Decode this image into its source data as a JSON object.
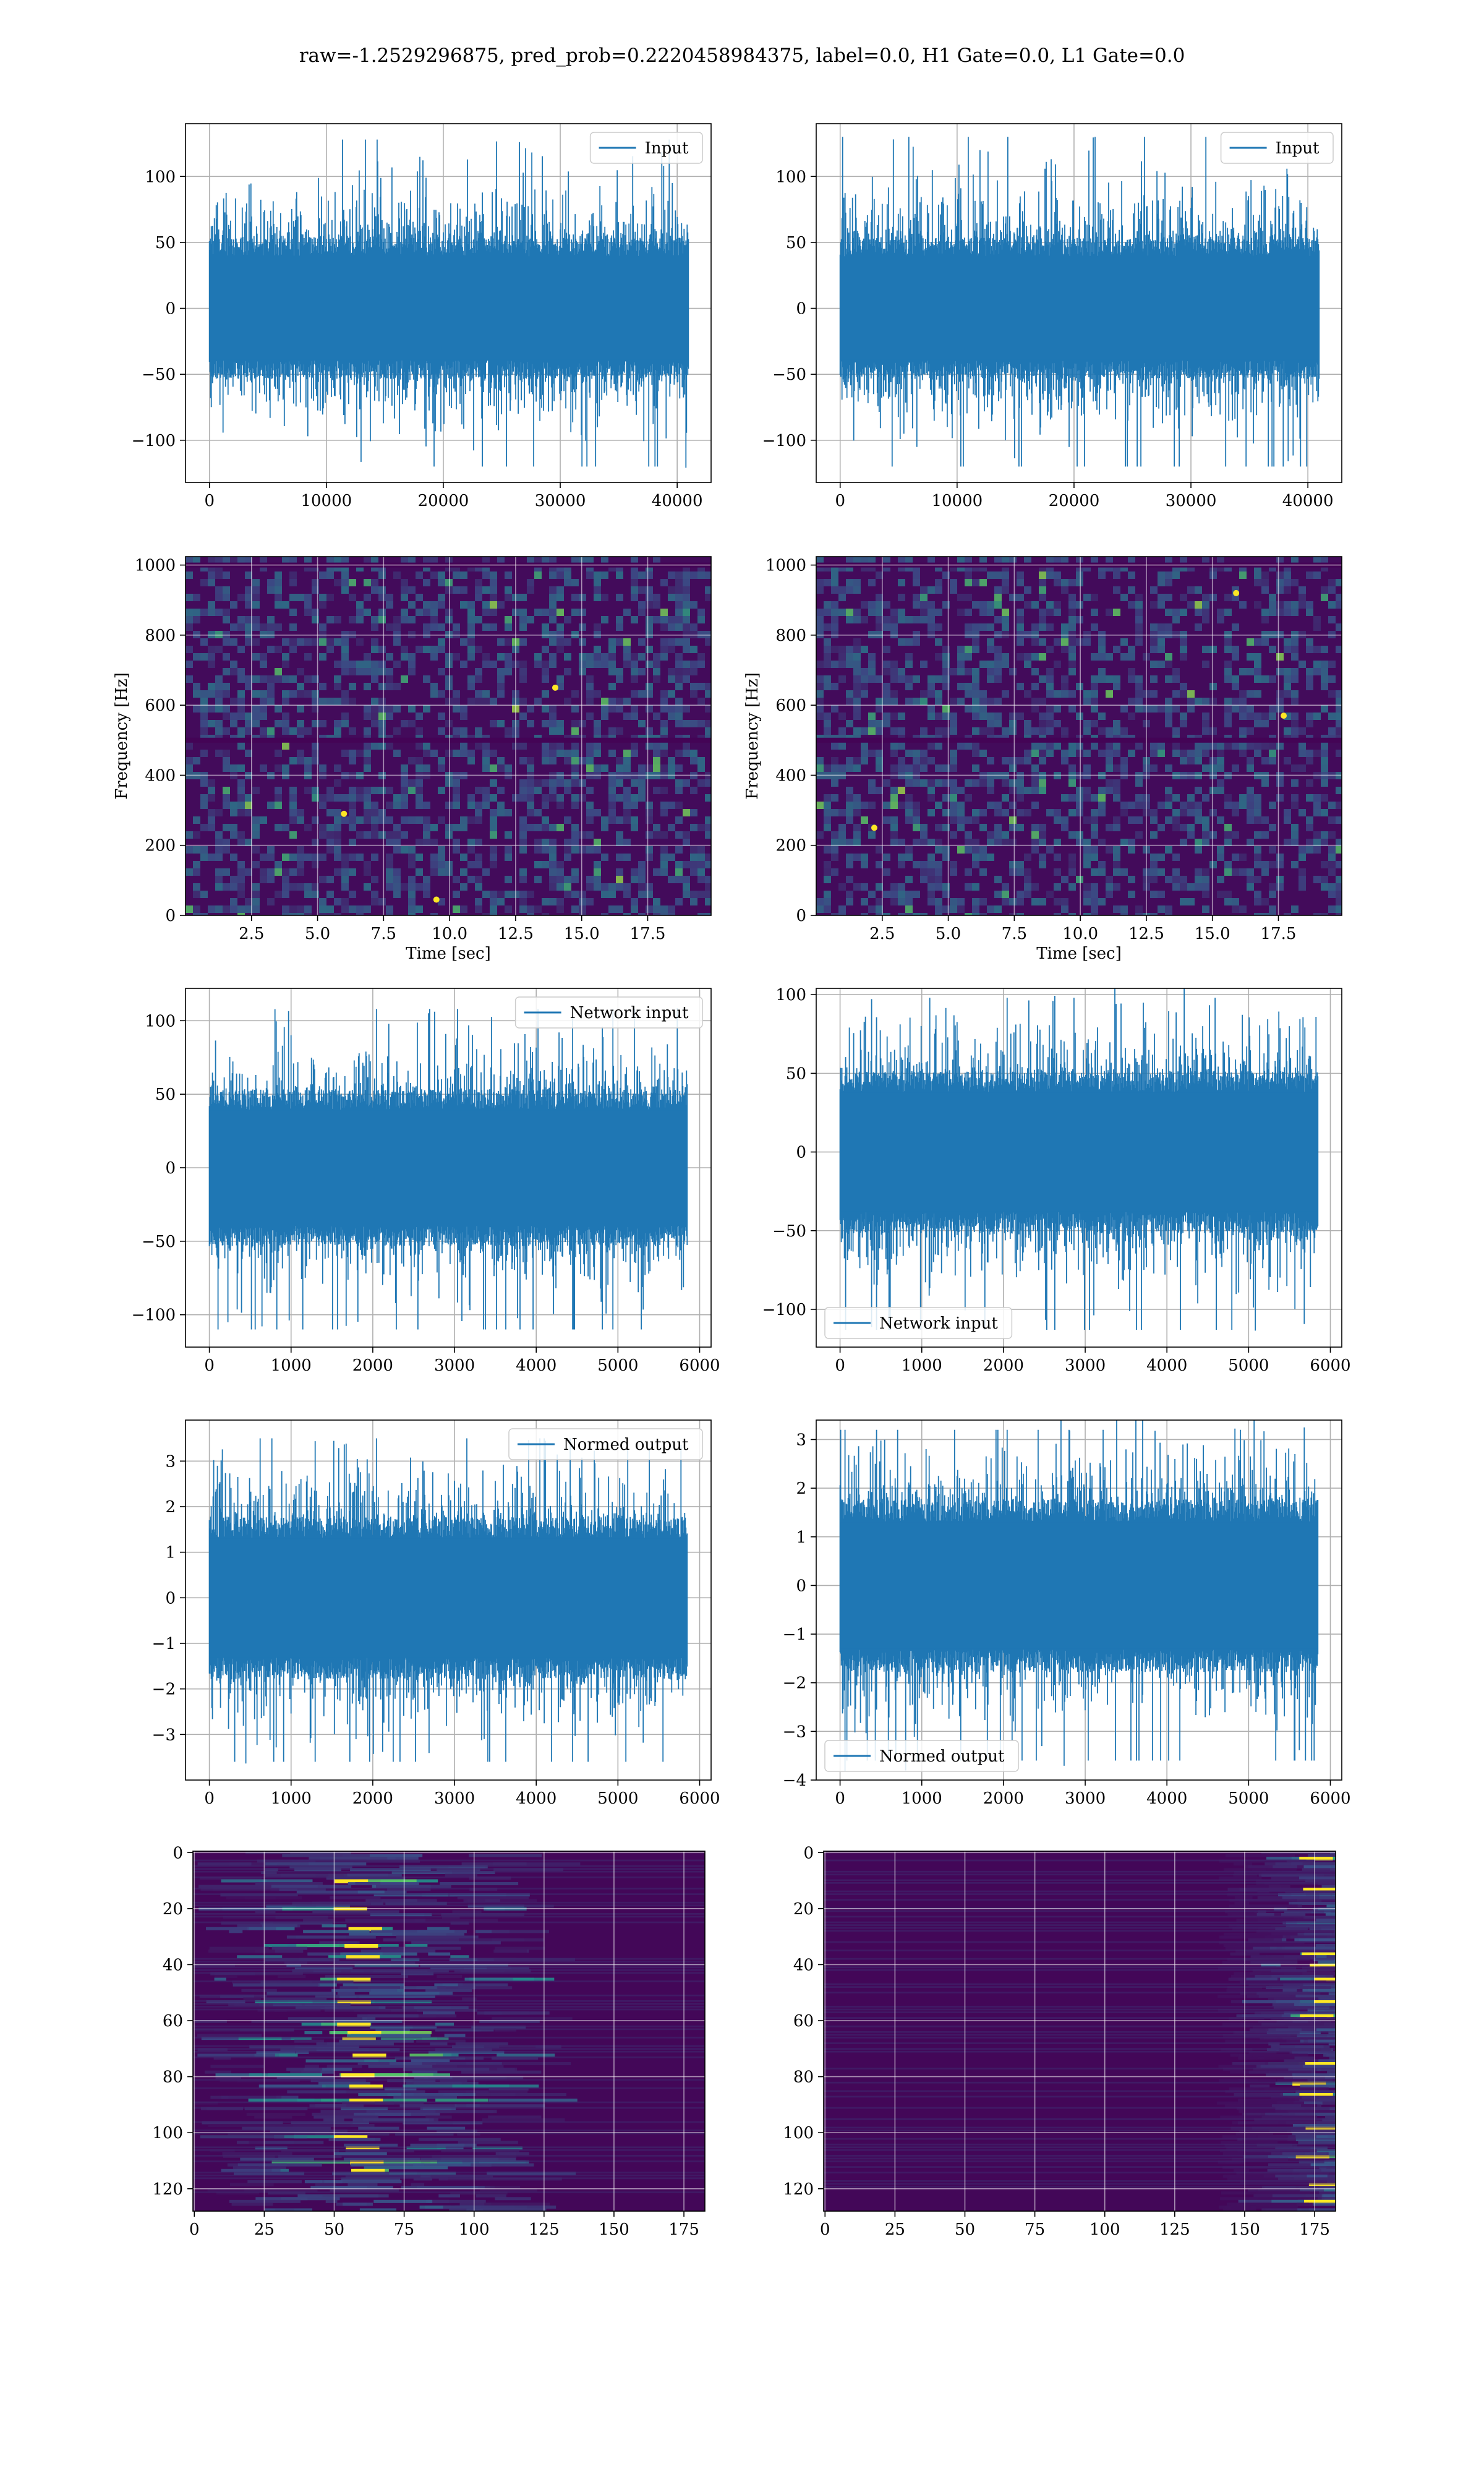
{
  "figure": {
    "suptitle": "raw=-1.2529296875, pred_prob=0.2220458984375, label=0.0, H1 Gate=0.0, L1 Gate=0.0"
  },
  "colors": {
    "line": "#1f77b4",
    "grid": "#b0b0b0",
    "frame": "#000000",
    "viridis_low": "#440154",
    "viridis_mid": "#21918c",
    "viridis_high": "#fde725"
  },
  "chart_data": [
    {
      "id": "ts-input-h1",
      "type": "line",
      "grid": true,
      "xlim": [
        -2048,
        42900
      ],
      "ylim": [
        -132,
        140
      ],
      "xticks": [
        0,
        10000,
        20000,
        30000,
        40000
      ],
      "xtick_labels": [
        "0",
        "10000",
        "20000",
        "30000",
        "40000"
      ],
      "yticks": [
        -100,
        -50,
        0,
        50,
        100
      ],
      "ytick_labels": [
        "−100",
        "−50",
        "0",
        "50",
        "100"
      ],
      "legend": "Input",
      "legend_loc": "upper right",
      "noise": {
        "n": 40960,
        "x0": 0,
        "x1": 40959,
        "std": 30,
        "peak": 128,
        "trough": -120
      }
    },
    {
      "id": "ts-input-l1",
      "type": "line",
      "grid": true,
      "xlim": [
        -2048,
        42900
      ],
      "ylim": [
        -132,
        140
      ],
      "xticks": [
        0,
        10000,
        20000,
        30000,
        40000
      ],
      "xtick_labels": [
        "0",
        "10000",
        "20000",
        "30000",
        "40000"
      ],
      "yticks": [
        -100,
        -50,
        0,
        50,
        100
      ],
      "ytick_labels": [
        "−100",
        "−50",
        "0",
        "50",
        "100"
      ],
      "legend": "Input",
      "legend_loc": "upper right",
      "noise": {
        "n": 40960,
        "x0": 0,
        "x1": 40959,
        "std": 30,
        "peak": 130,
        "trough": -120
      }
    },
    {
      "id": "spec-h1",
      "type": "heatmap",
      "grid": true,
      "xlim": [
        0,
        19.9
      ],
      "ylim": [
        0,
        1024
      ],
      "xticks": [
        2.5,
        5.0,
        7.5,
        10.0,
        12.5,
        15.0,
        17.5
      ],
      "xtick_labels": [
        "2.5",
        "5.0",
        "7.5",
        "10.0",
        "12.5",
        "15.0",
        "17.5"
      ],
      "yticks": [
        0,
        200,
        400,
        600,
        800,
        1000
      ],
      "ytick_labels": [
        "0",
        "200",
        "400",
        "600",
        "800",
        "1000"
      ],
      "xlabel": "Time [sec]",
      "ylabel": "Frequency [Hz]",
      "lines_y": [
        500,
        1000
      ],
      "hot_spots": [
        [
          9.5,
          45
        ],
        [
          6.0,
          290
        ],
        [
          14.0,
          650
        ]
      ]
    },
    {
      "id": "spec-l1",
      "type": "heatmap",
      "grid": true,
      "xlim": [
        0,
        19.9
      ],
      "ylim": [
        0,
        1024
      ],
      "xticks": [
        2.5,
        5.0,
        7.5,
        10.0,
        12.5,
        15.0,
        17.5
      ],
      "xtick_labels": [
        "2.5",
        "5.0",
        "7.5",
        "10.0",
        "12.5",
        "15.0",
        "17.5"
      ],
      "yticks": [
        0,
        200,
        400,
        600,
        800,
        1000
      ],
      "ytick_labels": [
        "0",
        "200",
        "400",
        "600",
        "800",
        "1000"
      ],
      "xlabel": "Time [sec]",
      "ylabel": "Frequency [Hz]",
      "lines_y": [
        500,
        1000
      ],
      "hot_spots": [
        [
          15.9,
          920
        ],
        [
          17.7,
          570
        ],
        [
          2.2,
          250
        ]
      ]
    },
    {
      "id": "ts-network-h1",
      "type": "line",
      "grid": true,
      "xlim": [
        -292,
        6140
      ],
      "ylim": [
        -122,
        122
      ],
      "xticks": [
        0,
        1000,
        2000,
        3000,
        4000,
        5000,
        6000
      ],
      "xtick_labels": [
        "0",
        "1000",
        "2000",
        "3000",
        "4000",
        "5000",
        "6000"
      ],
      "yticks": [
        -100,
        -50,
        0,
        50,
        100
      ],
      "ytick_labels": [
        "−100",
        "−50",
        "0",
        "50",
        "100"
      ],
      "legend": "Network input",
      "legend_loc": "upper right",
      "noise": {
        "n": 5848,
        "x0": 0,
        "x1": 5847,
        "std": 30,
        "peak": 108,
        "trough": -110
      }
    },
    {
      "id": "ts-network-l1",
      "type": "line",
      "grid": true,
      "xlim": [
        -292,
        6140
      ],
      "ylim": [
        -124,
        104
      ],
      "xticks": [
        0,
        1000,
        2000,
        3000,
        4000,
        5000,
        6000
      ],
      "xtick_labels": [
        "0",
        "1000",
        "2000",
        "3000",
        "4000",
        "5000",
        "6000"
      ],
      "yticks": [
        -100,
        -50,
        0,
        50,
        100
      ],
      "ytick_labels": [
        "−100",
        "−50",
        "0",
        "50",
        "100"
      ],
      "legend": "Network input",
      "legend_loc": "lower left",
      "noise": {
        "n": 5848,
        "x0": 0,
        "x1": 5847,
        "std": 29,
        "peak": 98,
        "trough": -113
      }
    },
    {
      "id": "ts-normed-h1",
      "type": "line",
      "grid": true,
      "xlim": [
        -292,
        6140
      ],
      "ylim": [
        -4.0,
        3.9
      ],
      "xticks": [
        0,
        1000,
        2000,
        3000,
        4000,
        5000,
        6000
      ],
      "xtick_labels": [
        "0",
        "1000",
        "2000",
        "3000",
        "4000",
        "5000",
        "6000"
      ],
      "yticks": [
        -3,
        -2,
        -1,
        0,
        1,
        2,
        3
      ],
      "ytick_labels": [
        "−3",
        "−2",
        "−1",
        "0",
        "1",
        "2",
        "3"
      ],
      "legend": "Normed output",
      "legend_loc": "upper right",
      "noise": {
        "n": 5848,
        "x0": 0,
        "x1": 5847,
        "std": 1.0,
        "peak": 3.5,
        "trough": -3.6
      }
    },
    {
      "id": "ts-normed-l1",
      "type": "line",
      "grid": true,
      "xlim": [
        -292,
        6140
      ],
      "ylim": [
        -4.0,
        3.4
      ],
      "xticks": [
        0,
        1000,
        2000,
        3000,
        4000,
        5000,
        6000
      ],
      "xtick_labels": [
        "0",
        "1000",
        "2000",
        "3000",
        "4000",
        "5000",
        "6000"
      ],
      "yticks": [
        -4,
        -3,
        -2,
        -1,
        0,
        1,
        2,
        3
      ],
      "ytick_labels": [
        "−4",
        "−3",
        "−2",
        "−1",
        "0",
        "1",
        "2",
        "3"
      ],
      "legend": "Normed output",
      "legend_loc": "lower left",
      "noise": {
        "n": 5848,
        "x0": 0,
        "x1": 5847,
        "std": 1.0,
        "peak": 3.2,
        "trough": -3.6
      }
    },
    {
      "id": "feat-h1",
      "type": "heatmap",
      "grid": true,
      "xlim": [
        -0.5,
        182.5
      ],
      "ylim": [
        128,
        -0.5
      ],
      "xticks": [
        0,
        25,
        50,
        75,
        100,
        125,
        150,
        175
      ],
      "xtick_labels": [
        "0",
        "25",
        "50",
        "75",
        "100",
        "125",
        "150",
        "175"
      ],
      "yticks": [
        0,
        20,
        40,
        60,
        80,
        100,
        120
      ],
      "ytick_labels": [
        "0",
        "20",
        "40",
        "60",
        "80",
        "100",
        "120"
      ],
      "rows": 128,
      "cols": 183,
      "active_cols": [
        0,
        110
      ],
      "center_col": 58,
      "hot_rows": [
        10,
        20,
        27,
        33,
        37,
        45,
        53,
        61,
        64,
        66,
        72,
        79,
        83,
        88,
        101,
        105,
        110,
        113
      ]
    },
    {
      "id": "feat-l1",
      "type": "heatmap",
      "grid": true,
      "xlim": [
        -0.5,
        182.5
      ],
      "ylim": [
        128,
        -0.5
      ],
      "xticks": [
        0,
        25,
        50,
        75,
        100,
        125,
        150,
        175
      ],
      "xtick_labels": [
        "0",
        "25",
        "50",
        "75",
        "100",
        "125",
        "150",
        "175"
      ],
      "yticks": [
        0,
        20,
        40,
        60,
        80,
        100,
        120
      ],
      "ytick_labels": [
        "0",
        "20",
        "40",
        "60",
        "80",
        "100",
        "120"
      ],
      "rows": 128,
      "cols": 183,
      "active_cols": [
        140,
        183
      ],
      "center_col": 176,
      "hot_rows": [
        2,
        13,
        36,
        40,
        45,
        53,
        58,
        75,
        82,
        86,
        98,
        108,
        118,
        124
      ]
    }
  ]
}
